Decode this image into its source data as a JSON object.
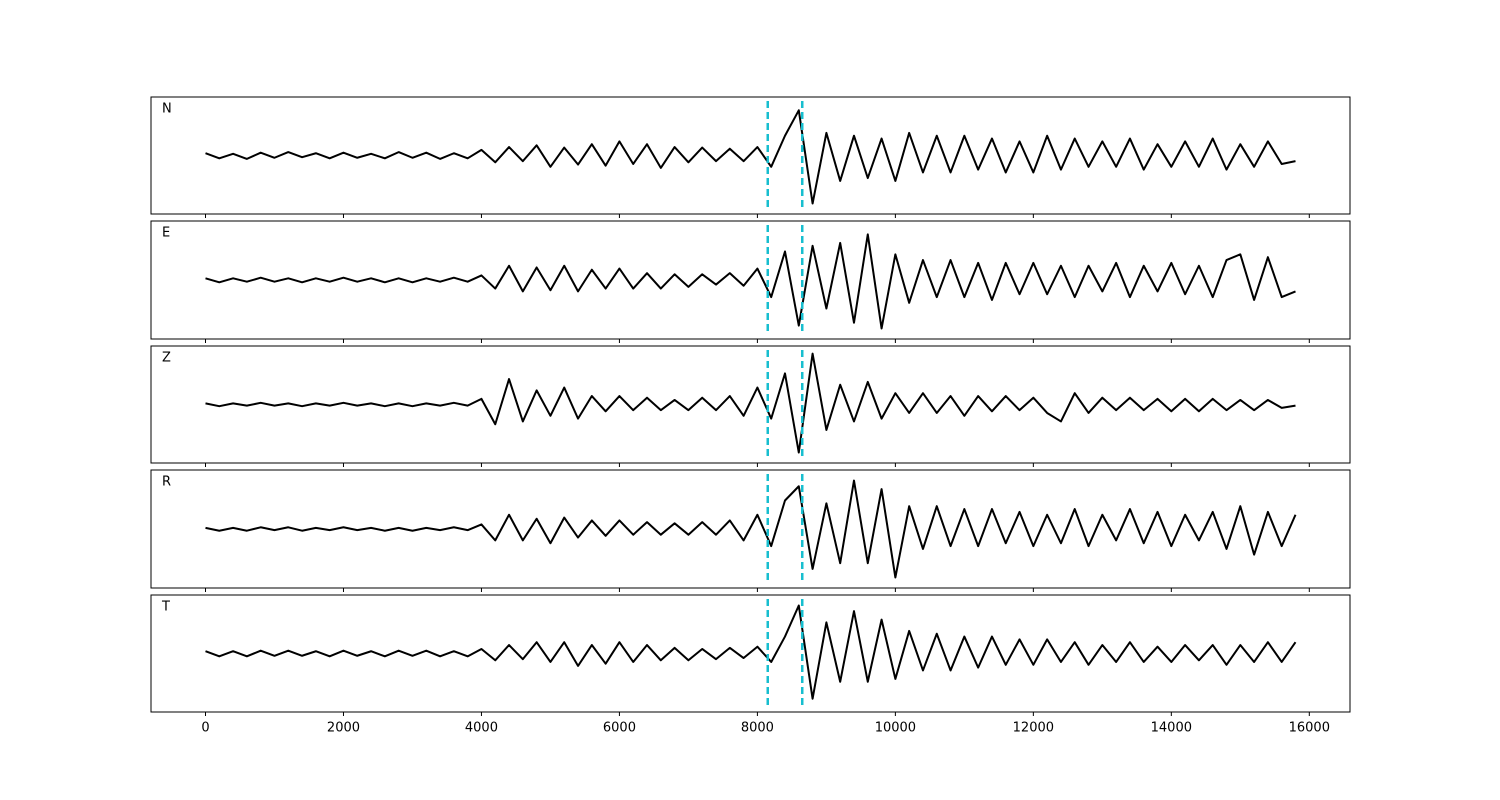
{
  "chart_data": {
    "type": "line",
    "x": [
      0,
      200,
      400,
      600,
      800,
      1000,
      1200,
      1400,
      1600,
      1800,
      2000,
      2200,
      2400,
      2600,
      2800,
      3000,
      3200,
      3400,
      3600,
      3800,
      4000,
      4200,
      4400,
      4600,
      4800,
      5000,
      5200,
      5400,
      5600,
      5800,
      6000,
      6200,
      6400,
      6600,
      6800,
      7000,
      7200,
      7400,
      7600,
      7800,
      8000,
      8200,
      8400,
      8600,
      8800,
      9000,
      9200,
      9400,
      9600,
      9800,
      10000,
      10200,
      10400,
      10600,
      10800,
      11000,
      11200,
      11400,
      11600,
      11800,
      12000,
      12200,
      12400,
      12600,
      12800,
      13000,
      13200,
      13400,
      13600,
      13800,
      14000,
      14200,
      14400,
      14600,
      14800,
      15000,
      15200,
      15400,
      15600,
      15800
    ],
    "xlim": [
      -790,
      16590
    ],
    "xticks": [
      0,
      2000,
      4000,
      6000,
      8000,
      10000,
      12000,
      14000,
      16000
    ],
    "ylim": [
      -1,
      1
    ],
    "color": "#000000",
    "markers": [
      8150,
      8650
    ],
    "marker_color": "#17becf",
    "series": [
      {
        "name": "N",
        "values": [
          0.04,
          -0.05,
          0.03,
          -0.06,
          0.05,
          -0.04,
          0.06,
          -0.03,
          0.04,
          -0.05,
          0.05,
          -0.04,
          0.03,
          -0.05,
          0.06,
          -0.04,
          0.05,
          -0.06,
          0.04,
          -0.05,
          0.1,
          -0.12,
          0.15,
          -0.1,
          0.18,
          -0.2,
          0.14,
          -0.16,
          0.2,
          -0.18,
          0.25,
          -0.15,
          0.2,
          -0.22,
          0.15,
          -0.12,
          0.14,
          -0.1,
          0.12,
          -0.1,
          0.15,
          -0.2,
          0.35,
          0.8,
          -0.85,
          0.4,
          -0.45,
          0.35,
          -0.4,
          0.3,
          -0.45,
          0.4,
          -0.3,
          0.35,
          -0.3,
          0.35,
          -0.25,
          0.3,
          -0.3,
          0.25,
          -0.3,
          0.35,
          -0.25,
          0.3,
          -0.2,
          0.25,
          -0.2,
          0.3,
          -0.25,
          0.2,
          -0.2,
          0.25,
          -0.2,
          0.3,
          -0.25,
          0.2,
          -0.2,
          0.25,
          -0.15,
          -0.1
        ]
      },
      {
        "name": "E",
        "values": [
          0.03,
          -0.04,
          0.03,
          -0.03,
          0.04,
          -0.03,
          0.03,
          -0.04,
          0.03,
          -0.03,
          0.04,
          -0.03,
          0.03,
          -0.04,
          0.03,
          -0.04,
          0.03,
          -0.03,
          0.04,
          -0.03,
          0.08,
          -0.15,
          0.25,
          -0.2,
          0.22,
          -0.18,
          0.25,
          -0.2,
          0.18,
          -0.15,
          0.2,
          -0.15,
          0.12,
          -0.15,
          0.1,
          -0.12,
          0.1,
          -0.08,
          0.12,
          -0.1,
          0.2,
          -0.3,
          0.5,
          -0.8,
          0.6,
          -0.5,
          0.65,
          -0.75,
          0.8,
          -0.85,
          0.45,
          -0.4,
          0.35,
          -0.3,
          0.35,
          -0.3,
          0.3,
          -0.35,
          0.3,
          -0.25,
          0.3,
          -0.25,
          0.25,
          -0.3,
          0.25,
          -0.2,
          0.3,
          -0.3,
          0.25,
          -0.2,
          0.3,
          -0.25,
          0.25,
          -0.3,
          0.35,
          0.45,
          -0.35,
          0.4,
          -0.3,
          -0.2
        ]
      },
      {
        "name": "Z",
        "values": [
          0.02,
          -0.03,
          0.02,
          -0.02,
          0.03,
          -0.02,
          0.02,
          -0.03,
          0.02,
          -0.02,
          0.03,
          -0.02,
          0.02,
          -0.03,
          0.02,
          -0.03,
          0.02,
          -0.02,
          0.03,
          -0.02,
          0.1,
          -0.35,
          0.45,
          -0.3,
          0.25,
          -0.2,
          0.3,
          -0.25,
          0.15,
          -0.12,
          0.15,
          -0.1,
          0.12,
          -0.1,
          0.08,
          -0.1,
          0.12,
          -0.1,
          0.15,
          -0.2,
          0.3,
          -0.25,
          0.55,
          -0.85,
          0.9,
          -0.45,
          0.35,
          -0.3,
          0.4,
          -0.25,
          0.2,
          -0.15,
          0.2,
          -0.15,
          0.15,
          -0.2,
          0.15,
          -0.12,
          0.15,
          -0.1,
          0.12,
          -0.15,
          -0.3,
          0.2,
          -0.15,
          0.12,
          -0.1,
          0.12,
          -0.1,
          0.1,
          -0.12,
          0.1,
          -0.12,
          0.1,
          -0.1,
          0.08,
          -0.1,
          0.08,
          -0.06,
          -0.02
        ]
      },
      {
        "name": "R",
        "values": [
          0.02,
          -0.03,
          0.02,
          -0.03,
          0.03,
          -0.02,
          0.03,
          -0.03,
          0.02,
          -0.02,
          0.03,
          -0.02,
          0.02,
          -0.03,
          0.02,
          -0.03,
          0.02,
          -0.02,
          0.03,
          -0.02,
          0.08,
          -0.2,
          0.25,
          -0.2,
          0.18,
          -0.25,
          0.2,
          -0.15,
          0.15,
          -0.12,
          0.15,
          -0.1,
          0.12,
          -0.1,
          0.1,
          -0.1,
          0.12,
          -0.1,
          0.15,
          -0.2,
          0.25,
          -0.3,
          0.5,
          0.75,
          -0.7,
          0.45,
          -0.6,
          0.85,
          -0.6,
          0.7,
          -0.85,
          0.4,
          -0.35,
          0.4,
          -0.3,
          0.35,
          -0.3,
          0.35,
          -0.25,
          0.3,
          -0.3,
          0.25,
          -0.25,
          0.35,
          -0.3,
          0.25,
          -0.2,
          0.35,
          -0.25,
          0.3,
          -0.3,
          0.25,
          -0.2,
          0.3,
          -0.35,
          0.4,
          -0.45,
          0.3,
          -0.3,
          0.25
        ]
      },
      {
        "name": "T",
        "values": [
          0.04,
          -0.05,
          0.04,
          -0.05,
          0.05,
          -0.04,
          0.05,
          -0.04,
          0.04,
          -0.05,
          0.05,
          -0.04,
          0.04,
          -0.05,
          0.05,
          -0.04,
          0.05,
          -0.05,
          0.04,
          -0.05,
          0.08,
          -0.12,
          0.15,
          -0.1,
          0.2,
          -0.15,
          0.2,
          -0.22,
          0.15,
          -0.18,
          0.2,
          -0.15,
          0.15,
          -0.12,
          0.1,
          -0.12,
          0.08,
          -0.1,
          0.1,
          -0.08,
          0.12,
          -0.15,
          0.3,
          0.85,
          -0.8,
          0.55,
          -0.5,
          0.75,
          -0.5,
          0.6,
          -0.45,
          0.4,
          -0.3,
          0.35,
          -0.3,
          0.3,
          -0.25,
          0.3,
          -0.2,
          0.25,
          -0.2,
          0.25,
          -0.15,
          0.2,
          -0.2,
          0.15,
          -0.15,
          0.2,
          -0.15,
          0.12,
          -0.15,
          0.15,
          -0.12,
          0.15,
          -0.2,
          0.15,
          -0.15,
          0.2,
          -0.15,
          0.2
        ]
      }
    ]
  }
}
